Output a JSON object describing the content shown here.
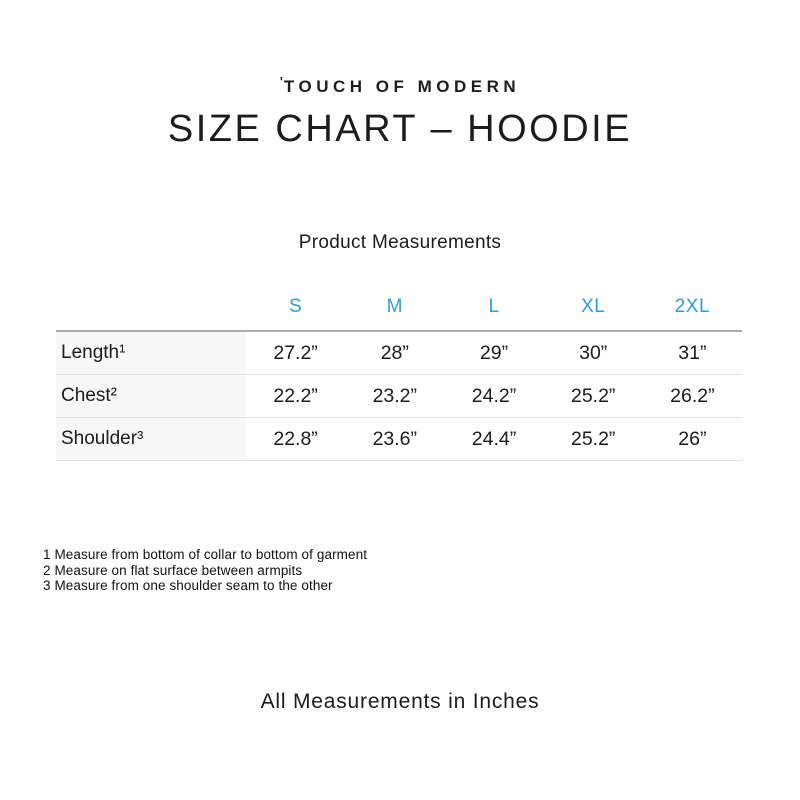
{
  "brand": {
    "mark": "'",
    "name": "TOUCH OF MODERN"
  },
  "title": "SIZE CHART – HOODIE",
  "section_title": "Product Measurements",
  "table": {
    "columns": [
      "S",
      "M",
      "L",
      "XL",
      "2XL"
    ],
    "rows": [
      {
        "label": "Length¹",
        "values": [
          "27.2”",
          "28”",
          "29”",
          "30”",
          "31”"
        ]
      },
      {
        "label": "Chest²",
        "values": [
          "22.2”",
          "23.2”",
          "24.2”",
          "25.2”",
          "26.2”"
        ]
      },
      {
        "label": "Shoulder³",
        "values": [
          "22.8”",
          "23.6”",
          "24.4”",
          "25.2”",
          "26”"
        ]
      }
    ]
  },
  "footnotes": [
    "1 Measure from bottom of collar to bottom of garment",
    "2 Measure on flat surface between armpits",
    "3 Measure from one shoulder seam to the other"
  ],
  "footer_note": "All Measurements in Inches",
  "colors": {
    "accent_blue": "#2e9cdb",
    "text": "#1c1c1c",
    "label_column_bg": "#f7f7f7",
    "table_top_border": "#ababab",
    "row_border": "#e0e0e0"
  },
  "chart_data": {
    "type": "table",
    "title": "SIZE CHART – HOODIE",
    "subtitle": "Product Measurements",
    "unit": "inches",
    "columns": [
      "S",
      "M",
      "L",
      "XL",
      "2XL"
    ],
    "rows": [
      {
        "measurement": "Length",
        "values": [
          27.2,
          28,
          29,
          30,
          31
        ]
      },
      {
        "measurement": "Chest",
        "values": [
          22.2,
          23.2,
          24.2,
          25.2,
          26.2
        ]
      },
      {
        "measurement": "Shoulder",
        "values": [
          22.8,
          23.6,
          24.4,
          25.2,
          26
        ]
      }
    ],
    "notes": [
      "1 Measure from bottom of collar to bottom of garment",
      "2 Measure on flat surface between armpits",
      "3 Measure from one shoulder seam to the other",
      "All Measurements in Inches"
    ]
  }
}
